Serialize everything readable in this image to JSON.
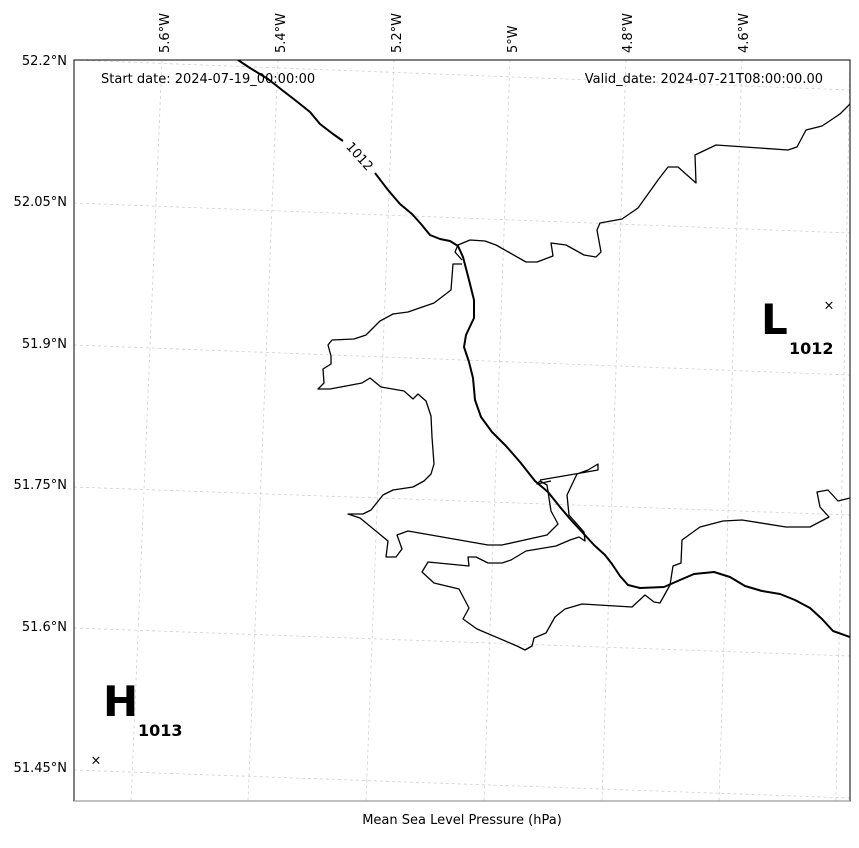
{
  "map": {
    "start_date": "Start date: 2024-07-19_00:00:00",
    "valid_date": "Valid_date: 2024-07-21T08:00:00.00",
    "xlabel": "Mean Sea Level Pressure (hPa)",
    "lon_labels": [
      "5.6°W",
      "5.4°W",
      "5.2°W",
      "5°W",
      "4.8°W",
      "4.6°W"
    ],
    "lat_labels": [
      "52.2°N",
      "52.05°N",
      "51.9°N",
      "51.75°N",
      "51.6°N",
      "51.45°N"
    ],
    "isobar_label": "1012",
    "low": {
      "letter": "L",
      "value": "1012",
      "marker": "×"
    },
    "high": {
      "letter": "H",
      "value": "1013",
      "marker": "×"
    }
  }
}
